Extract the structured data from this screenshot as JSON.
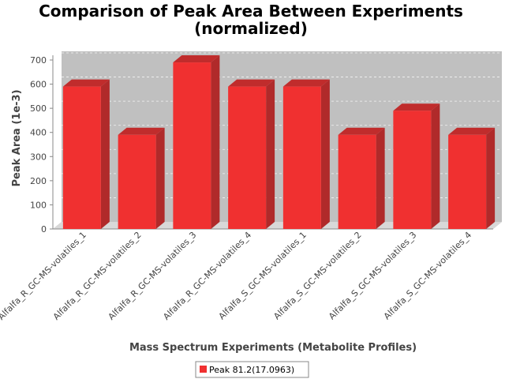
{
  "chart_data": {
    "type": "bar",
    "title_lines": [
      "Comparison of Peak Area Between Experiments",
      "(normalized)"
    ],
    "xlabel": "Mass Spectrum Experiments (Metabolite Profiles)",
    "ylabel": "Peak Area (1e-3)",
    "ylim": [
      0,
      700
    ],
    "yticks": [
      0,
      100,
      200,
      300,
      400,
      500,
      600,
      700
    ],
    "categories": [
      "Alfalfa_R_GC-MS-volatiles_1",
      "Alfalfa_R_GC-MS-volatiles_2",
      "Alfalfa_R_GC-MS-volatiles_3",
      "Alfalfa_R_GC-MS-volatiles_4",
      "Alfalfa_S_GC-MS-volatiles_1",
      "Alfalfa_S_GC-MS-volatiles_2",
      "Alfalfa_S_GC-MS-volatiles_3",
      "Alfalfa_S_GC-MS-volatiles_4"
    ],
    "series": [
      {
        "name": "Peak 81.2(17.0963)",
        "color": "#f03030",
        "values": [
          590,
          390,
          690,
          590,
          590,
          390,
          490,
          390
        ]
      }
    ],
    "grid": true,
    "legend_position": "bottom-center",
    "plot_background": "#c0c0c0"
  }
}
